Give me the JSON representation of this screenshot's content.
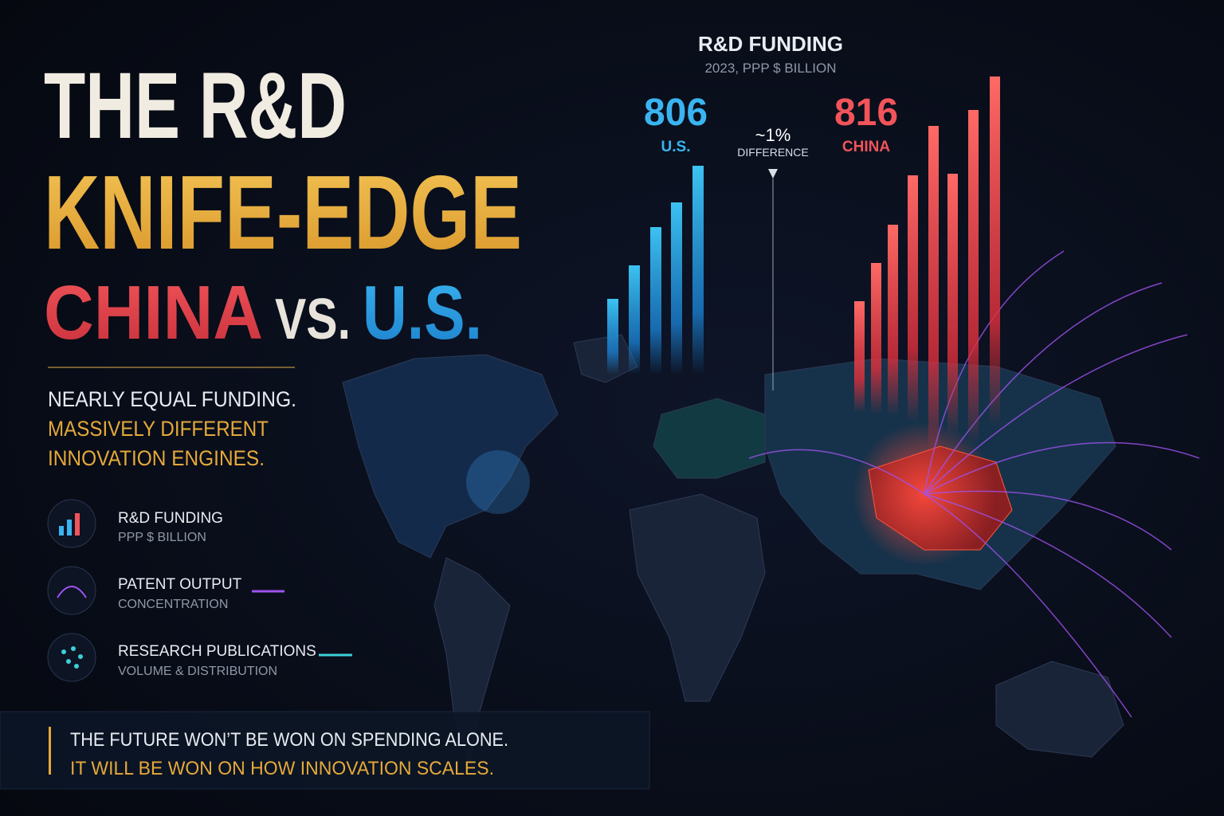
{
  "title": {
    "line1": "THE R&D",
    "line2": "KNIFE-EDGE",
    "china": "CHINA",
    "vs": "VS.",
    "us": "U.S."
  },
  "subtitle": {
    "line1": "NEARLY EQUAL FUNDING.",
    "line2": "MASSIVELY DIFFERENT",
    "line3": "INNOVATION ENGINES."
  },
  "legend": [
    {
      "title": "R&D FUNDING",
      "subtitle": "PPP $ BILLION"
    },
    {
      "title": "PATENT OUTPUT",
      "subtitle": "CONCENTRATION"
    },
    {
      "title": "RESEARCH PUBLICATIONS",
      "subtitle": "VOLUME & DISTRIBUTION"
    }
  ],
  "funding": {
    "title": "R&D FUNDING",
    "subtitle": "2023, PPP $ BILLION",
    "us": {
      "value": 806,
      "label": "U.S."
    },
    "china": {
      "value": 816,
      "label": "CHINA"
    },
    "difference": {
      "value": "~1%",
      "label": "DIFFERENCE"
    }
  },
  "footer": {
    "line1": "THE FUTURE WON’T BE WON ON SPENDING ALONE.",
    "line2": "IT WILL BE WON ON HOW INNOVATION SCALES."
  }
}
